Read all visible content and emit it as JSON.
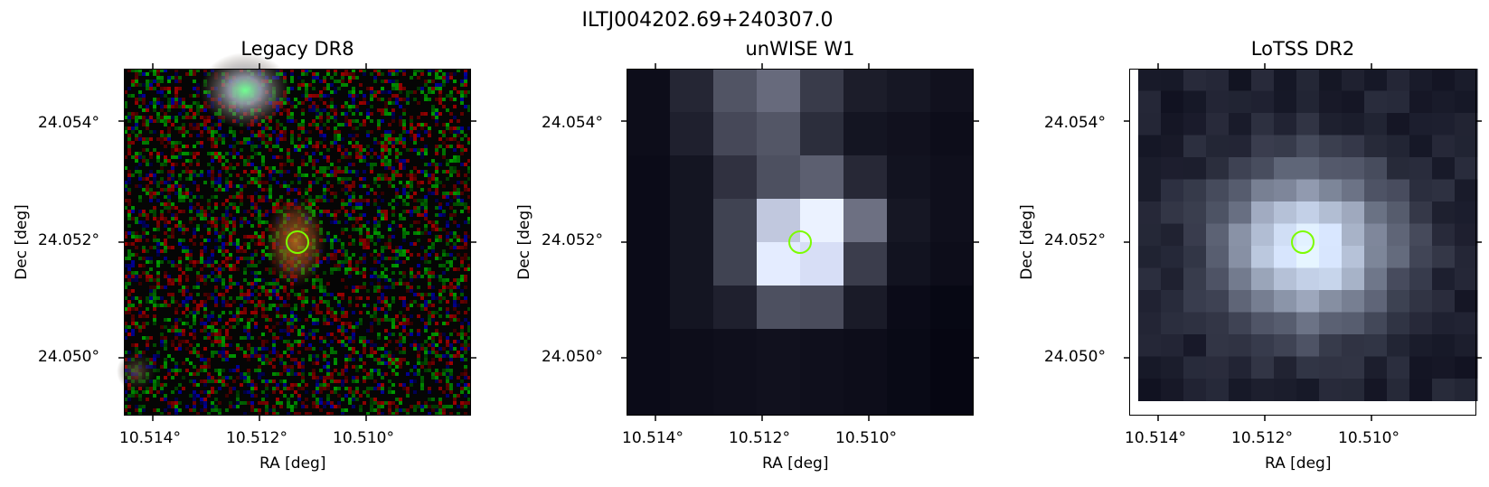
{
  "figure": {
    "suptitle": "ILTJ004202.69+240307.0",
    "x_axis_label": "RA [deg]",
    "y_axis_label": "Dec [deg]",
    "x_tick_labels": [
      "10.514°",
      "10.512°",
      "10.510°"
    ],
    "y_tick_labels": [
      "24.054°",
      "24.052°",
      "24.050°"
    ],
    "marker_color": "#7cfc00"
  },
  "panels": [
    {
      "title": "Legacy DR8"
    },
    {
      "title": "unWISE W1"
    },
    {
      "title": "LoTSS DR2"
    }
  ]
}
